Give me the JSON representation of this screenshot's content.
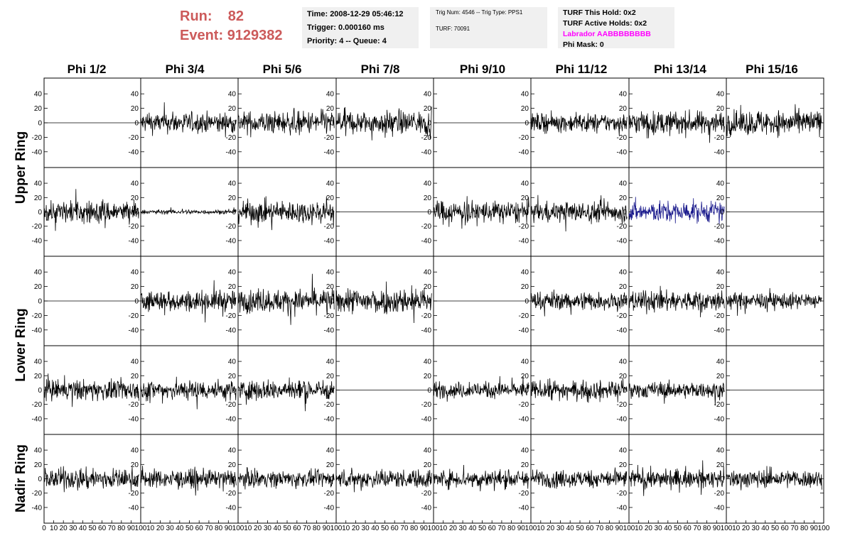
{
  "run_info": {
    "run_label": "Run:",
    "run_value": "82",
    "event_label": "Event:",
    "event_value": "9129382"
  },
  "time_box": {
    "time": "Time: 2008-12-29 05:46:12",
    "trigger": "Trigger: 0.000160 ms",
    "priority": "Priority: 4 -- Queue: 4"
  },
  "trig_box": {
    "trig": "Trig Num: 4546 -- Trig Type: PPS1",
    "turf": "TURF: 70091"
  },
  "turf_box": {
    "this_hold": "TURF This Hold: 0x2",
    "active_holds": "TURF Active Holds: 0x2",
    "labrador": "Labrador AABBBBBBBB",
    "phi_mask": "Phi Mask: 0"
  },
  "colors": {
    "trace": "#000000",
    "highlight_trace": "#1a1a8c",
    "header_red": "#cc5a5a",
    "labrador_magenta": "#ff00ff",
    "info_box_bg": "#f0f0f0"
  },
  "chart_data": {
    "type": "line",
    "columns": [
      "Phi 1/2",
      "Phi 3/4",
      "Phi 5/6",
      "Phi 7/8",
      "Phi 9/10",
      "Phi 11/12",
      "Phi 13/14",
      "Phi 15/16"
    ],
    "row_labels": [
      {
        "text": "Upper Ring",
        "spans_rows": [
          0,
          1
        ]
      },
      {
        "text": "Lower Ring",
        "spans_rows": [
          2,
          3
        ]
      },
      {
        "text": "Nadir Ring",
        "spans_rows": [
          4
        ]
      }
    ],
    "xlim": [
      0,
      100
    ],
    "ylim": [
      -50,
      50
    ],
    "y_ticks": [
      "-40",
      "-20",
      "0",
      "20",
      "40"
    ],
    "x_ticks": [
      "0",
      "10",
      "20",
      "30",
      "40",
      "50",
      "60",
      "70",
      "80",
      "90",
      "100"
    ],
    "samples_per_trace": 260,
    "note_amplitude": "approximate peak amplitude (ADC counts) per panel; 0 = flat line",
    "amplitude": [
      [
        0,
        18,
        20,
        20,
        0,
        16,
        20,
        22
      ],
      [
        20,
        4,
        20,
        0,
        20,
        18,
        18,
        0
      ],
      [
        0,
        18,
        20,
        22,
        0,
        16,
        18,
        14
      ],
      [
        18,
        18,
        18,
        0,
        14,
        16,
        14,
        0
      ],
      [
        18,
        16,
        14,
        16,
        16,
        16,
        16,
        16
      ]
    ],
    "highlight": [
      [
        1,
        6
      ]
    ],
    "grid": false,
    "legend": "none"
  }
}
